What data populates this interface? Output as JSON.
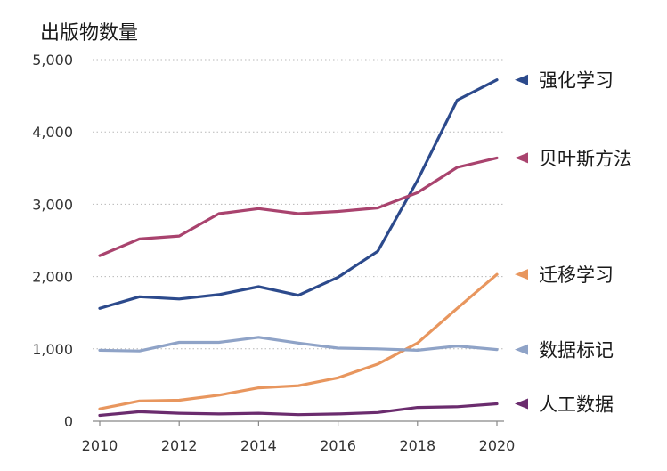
{
  "chart_data": {
    "type": "line",
    "ylabel": "出版物数量",
    "x": [
      2010,
      2011,
      2012,
      2013,
      2014,
      2015,
      2016,
      2017,
      2018,
      2019,
      2020
    ],
    "xticks": [
      2010,
      2012,
      2014,
      2016,
      2018,
      2020
    ],
    "xtick_labels": [
      "2010",
      "2012",
      "2014",
      "2016",
      "2018",
      "2020"
    ],
    "yticks": [
      0,
      1000,
      2000,
      3000,
      4000,
      5000
    ],
    "ytick_labels": [
      "0",
      "1,000",
      "2,000",
      "3,000",
      "4,000",
      "5,000"
    ],
    "xlim": [
      2010,
      2020
    ],
    "ylim": [
      0,
      5000
    ],
    "grid": "horizontal dotted",
    "legend_position": "right",
    "series": [
      {
        "name": "强化学习",
        "color": "#2c4a8c",
        "values": [
          1560,
          1720,
          1690,
          1750,
          1860,
          1740,
          1990,
          2350,
          3330,
          4440,
          4720
        ]
      },
      {
        "name": "贝叶斯方法",
        "color": "#a9436e",
        "values": [
          2290,
          2520,
          2560,
          2870,
          2940,
          2870,
          2900,
          2950,
          3160,
          3510,
          3640
        ]
      },
      {
        "name": "迁移学习",
        "color": "#e8965e",
        "values": [
          170,
          280,
          290,
          360,
          460,
          490,
          600,
          790,
          1080,
          1560,
          2030
        ]
      },
      {
        "name": "数据标记",
        "color": "#8fa3c7",
        "values": [
          980,
          970,
          1090,
          1090,
          1160,
          1080,
          1010,
          1000,
          980,
          1040,
          990
        ]
      },
      {
        "name": "人工数据",
        "color": "#6b2c6e",
        "values": [
          80,
          130,
          110,
          100,
          110,
          90,
          100,
          120,
          190,
          200,
          240
        ]
      }
    ]
  }
}
